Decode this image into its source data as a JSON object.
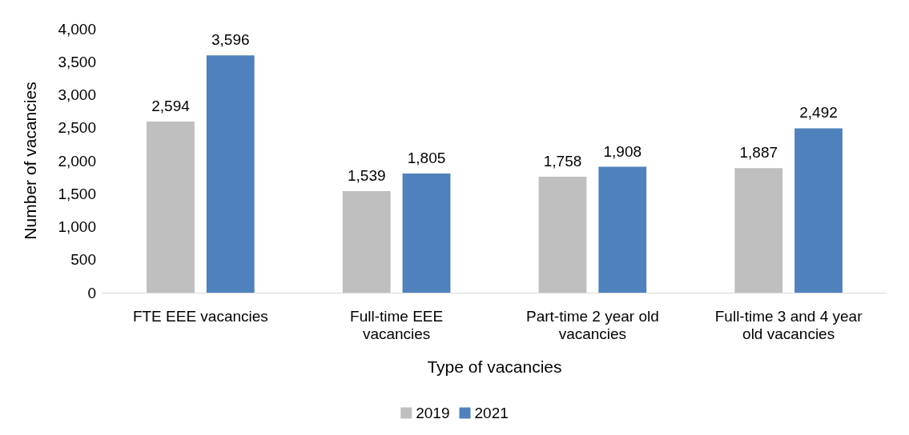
{
  "chart_data": {
    "type": "bar",
    "xlabel": "Type of vacancies",
    "ylabel": "Number of vacancies",
    "categories": [
      "FTE EEE vacancies",
      "Full-time EEE\nvacancies",
      "Part-time 2 year old\nvacancies",
      "Full-time 3 and 4 year\nold vacancies"
    ],
    "series": [
      {
        "name": "2019",
        "color": "#bfbfbf",
        "values": [
          2594,
          1539,
          1758,
          1887
        ],
        "value_labels": [
          "2,594",
          "1,539",
          "1,758",
          "1,887"
        ]
      },
      {
        "name": "2021",
        "color": "#4f81bd",
        "values": [
          3596,
          1805,
          1908,
          2492
        ],
        "value_labels": [
          "3,596",
          "1,805",
          "1,908",
          "2,492"
        ]
      }
    ],
    "ylim": [
      0,
      4000
    ],
    "yticks": [
      0,
      500,
      {
        "value": 1000,
        "label": "1,000"
      },
      {
        "value": 1500,
        "label": "1,500"
      },
      {
        "value": 2000,
        "label": "2,000"
      },
      {
        "value": 2500,
        "label": "2,500"
      },
      {
        "value": 3000,
        "label": "3,000"
      },
      {
        "value": 3500,
        "label": "3,500"
      },
      {
        "value": 4000,
        "label": "4,000"
      }
    ],
    "grid": false,
    "legend": "bottom"
  }
}
